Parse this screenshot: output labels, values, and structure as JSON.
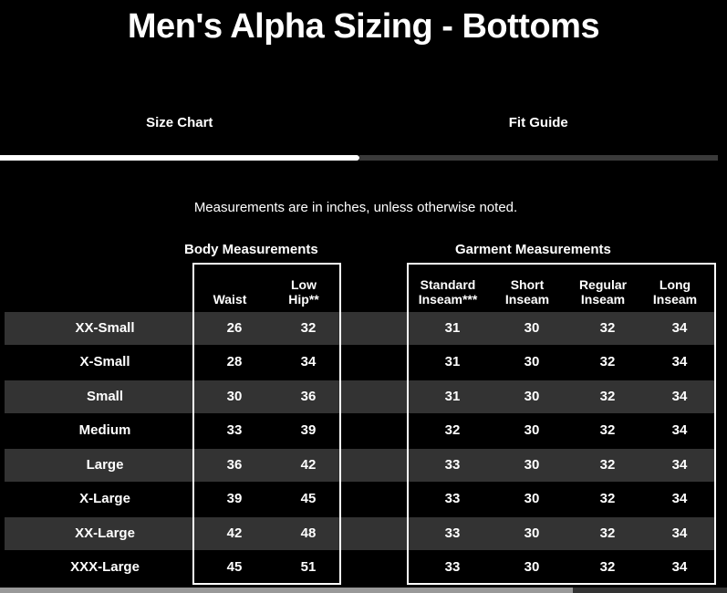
{
  "page": {
    "title": "Men's Alpha Sizing - Bottoms"
  },
  "tabs": [
    {
      "label": "Size Chart",
      "active": true
    },
    {
      "label": "Fit Guide",
      "active": false
    }
  ],
  "note": "Measurements are in inches, unless otherwise noted.",
  "table": {
    "groups": [
      {
        "label": "Body Measurements",
        "columns": [
          "Waist",
          "Low Hip**"
        ]
      },
      {
        "label": "Garment Measurements",
        "columns": [
          "Standard Inseam***",
          "Short Inseam",
          "Regular Inseam",
          "Long Inseam"
        ]
      }
    ],
    "rows": [
      {
        "size": "XX-Small",
        "body": [
          "26",
          "32"
        ],
        "garment": [
          "31",
          "30",
          "32",
          "34"
        ]
      },
      {
        "size": "X-Small",
        "body": [
          "28",
          "34"
        ],
        "garment": [
          "31",
          "30",
          "32",
          "34"
        ]
      },
      {
        "size": "Small",
        "body": [
          "30",
          "36"
        ],
        "garment": [
          "31",
          "30",
          "32",
          "34"
        ]
      },
      {
        "size": "Medium",
        "body": [
          "33",
          "39"
        ],
        "garment": [
          "32",
          "30",
          "32",
          "34"
        ]
      },
      {
        "size": "Large",
        "body": [
          "36",
          "42"
        ],
        "garment": [
          "33",
          "30",
          "32",
          "34"
        ]
      },
      {
        "size": "X-Large",
        "body": [
          "39",
          "45"
        ],
        "garment": [
          "33",
          "30",
          "32",
          "34"
        ]
      },
      {
        "size": "XX-Large",
        "body": [
          "42",
          "48"
        ],
        "garment": [
          "33",
          "30",
          "32",
          "34"
        ]
      },
      {
        "size": "XXX-Large",
        "body": [
          "45",
          "51"
        ],
        "garment": [
          "33",
          "30",
          "32",
          "34"
        ]
      }
    ]
  },
  "colors": {
    "background": "#000000",
    "text": "#ffffff",
    "row_alt": "#333333",
    "active_underline": "#ffffff",
    "inactive_underline": "#3a3a3a",
    "box_border": "#ffffff",
    "scrollbar_thumb": "#999999",
    "scrollbar_track": "#333333"
  }
}
